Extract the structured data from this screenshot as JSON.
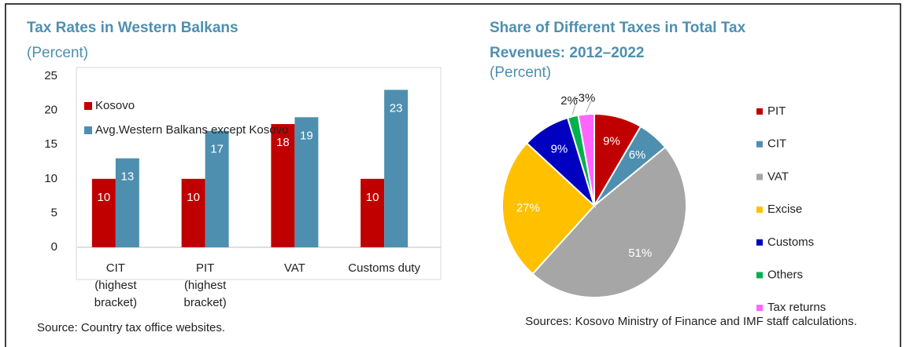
{
  "chart_data": [
    {
      "type": "bar",
      "title": "Tax Rates in Western Balkans",
      "subtitle": "(Percent)",
      "categories": [
        [
          "CIT",
          "(highest",
          "bracket)"
        ],
        [
          "PIT",
          "(highest",
          "bracket)"
        ],
        [
          "VAT"
        ],
        [
          "Customs duty"
        ]
      ],
      "series": [
        {
          "name": "Kosovo",
          "color": "#c00000",
          "values": [
            10,
            10,
            18,
            10
          ]
        },
        {
          "name": "Avg.Western Balkans except Kosovo",
          "color": "#4e8fb0",
          "values": [
            13,
            17,
            19,
            23
          ]
        }
      ],
      "ylim": [
        0,
        25
      ],
      "yticks": [
        0,
        5,
        10,
        15,
        20,
        25
      ],
      "legend": "upper left",
      "source": "Source: Country tax office websites."
    },
    {
      "type": "pie",
      "title": "Share of Different Taxes in Total Tax Revenues: 2012–2022",
      "subtitle": "(Percent)",
      "categories": [
        "PIT",
        "CIT",
        "VAT",
        "Excise",
        "Customs",
        "Others",
        "Tax returns"
      ],
      "values": [
        9,
        6,
        51,
        27,
        9,
        2,
        -3
      ],
      "value_labels": [
        "9%",
        "6%",
        "51%",
        "27%",
        "9%",
        "2%",
        "-3%"
      ],
      "colors": [
        "#c00000",
        "#4e8fb0",
        "#a6a6a6",
        "#ffc000",
        "#0000c0",
        "#00b050",
        "#ff66ff"
      ],
      "legend": "right",
      "source": "Sources: Kosovo Ministry of Finance and IMF staff calculations."
    }
  ]
}
